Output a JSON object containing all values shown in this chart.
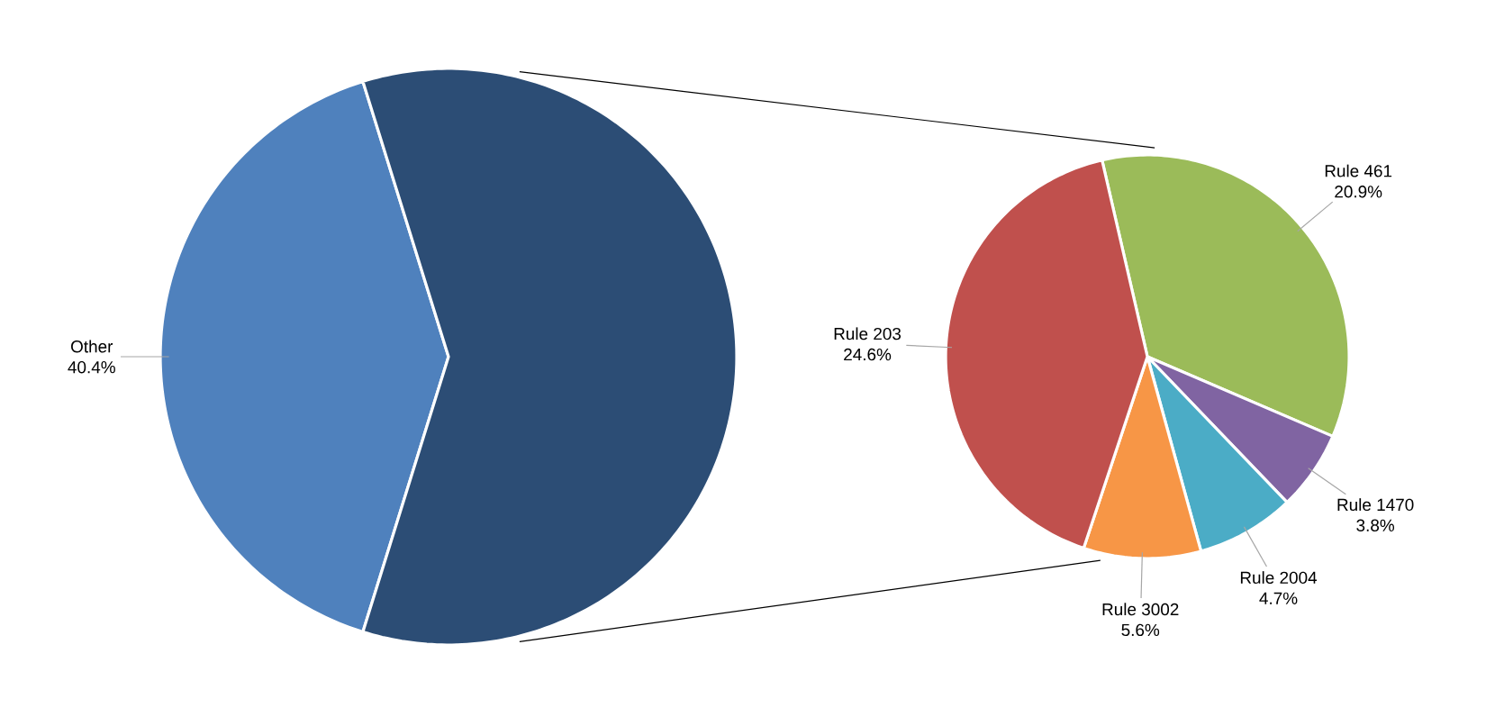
{
  "chart_data": [
    {
      "type": "pie",
      "categories": [
        "Other",
        null
      ],
      "values": [
        40.4,
        59.6
      ],
      "value_labels": [
        "40.4%",
        null
      ],
      "colors": [
        "#4f81bd",
        "#2c4d75"
      ]
    },
    {
      "type": "pie",
      "categories": [
        "Rule 461",
        "Rule 1470",
        "Rule 2004",
        "Rule 3002",
        "Rule 203"
      ],
      "values": [
        20.9,
        3.8,
        4.7,
        5.6,
        24.6
      ],
      "value_labels": [
        "20.9%",
        "3.8%",
        "4.7%",
        "5.6%",
        "24.6%"
      ],
      "colors": [
        "#9bbb59",
        "#8064a2",
        "#4bacc6",
        "#f79646",
        "#c0504d"
      ]
    }
  ]
}
